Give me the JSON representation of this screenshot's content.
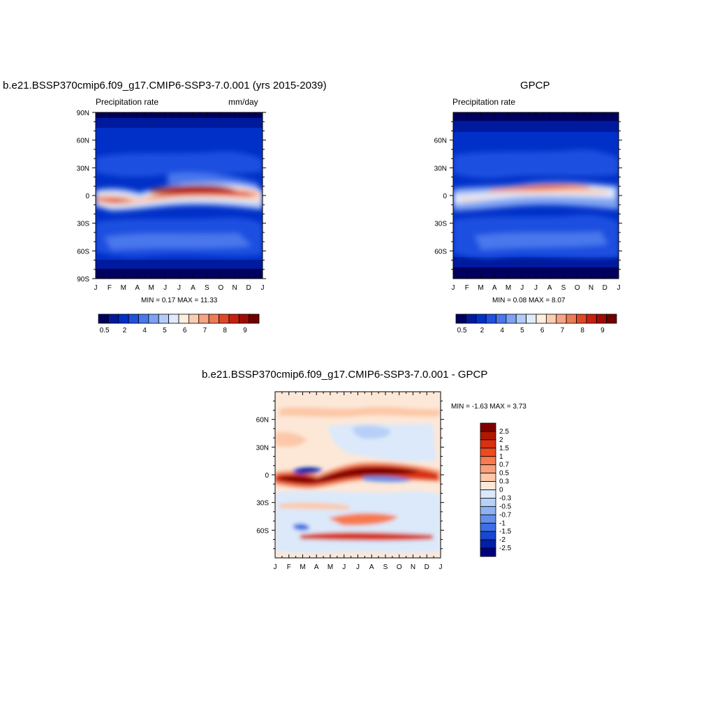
{
  "panels": [
    {
      "id": "model",
      "title": "b.e21.BSSP370cmip6.f09_g17.CMIP6-SSP3-7.0.001 (yrs 2015-2039)",
      "left_label": "Precipitation rate",
      "right_label": "mm/day",
      "minmax": "MIN =   0.17 MAX =  11.33"
    },
    {
      "id": "obs",
      "title": "GPCP",
      "left_label": "Precipitation rate",
      "right_label": "",
      "minmax": "MIN =   0.08 MAX =   8.07"
    },
    {
      "id": "diff",
      "title": "b.e21.BSSP370cmip6.f09_g17.CMIP6-SSP3-7.0.001 - GPCP",
      "left_label": "",
      "right_label": "",
      "minmax": "MIN =  -1.63 MAX =   3.73"
    }
  ],
  "chart_data": [
    {
      "type": "heatmap",
      "id": "model",
      "title": "b.e21.BSSP370cmip6.f09_g17.CMIP6-SSP3-7.0.001 (yrs 2015-2039)",
      "subtitle_left": "Precipitation rate",
      "units": "mm/day",
      "x_ticks": [
        "J",
        "F",
        "M",
        "A",
        "M",
        "J",
        "J",
        "A",
        "S",
        "O",
        "N",
        "D",
        "J"
      ],
      "y_ticks": [
        "90N",
        "60N",
        "30N",
        "0",
        "30S",
        "60S",
        "90S"
      ],
      "ylim": [
        -90,
        90
      ],
      "colorbar_labels": [
        "0.5",
        "2",
        "4",
        "5",
        "6",
        "7",
        "8",
        "9"
      ],
      "colorbar_colors": [
        "#00005f",
        "#001a9e",
        "#0030c8",
        "#1f50e0",
        "#4a78ec",
        "#7ea2f2",
        "#b3cbf8",
        "#dfeafd",
        "#fdeee0",
        "#fbcdb0",
        "#f7a384",
        "#f07a55",
        "#e0472a",
        "#c8200f",
        "#a00c05",
        "#6e0000"
      ],
      "min": 0.17,
      "max": 11.33
    },
    {
      "type": "heatmap",
      "id": "obs",
      "title": "GPCP",
      "subtitle_left": "Precipitation rate",
      "x_ticks": [
        "J",
        "F",
        "M",
        "A",
        "M",
        "J",
        "J",
        "A",
        "S",
        "O",
        "N",
        "D",
        "J"
      ],
      "y_ticks": [
        "60N",
        "30N",
        "0",
        "30S",
        "60S"
      ],
      "ylim": [
        -90,
        90
      ],
      "colorbar_labels": [
        "0.5",
        "2",
        "4",
        "5",
        "6",
        "7",
        "8",
        "9"
      ],
      "colorbar_colors": [
        "#00005f",
        "#001a9e",
        "#0030c8",
        "#1f50e0",
        "#4a78ec",
        "#7ea2f2",
        "#b3cbf8",
        "#dfeafd",
        "#fdeee0",
        "#fbcdb0",
        "#f7a384",
        "#f07a55",
        "#e0472a",
        "#c8200f",
        "#a00c05",
        "#6e0000"
      ],
      "min": 0.08,
      "max": 8.07
    },
    {
      "type": "heatmap",
      "id": "diff",
      "title": "b.e21.BSSP370cmip6.f09_g17.CMIP6-SSP3-7.0.001 - GPCP",
      "x_ticks": [
        "J",
        "F",
        "M",
        "A",
        "M",
        "J",
        "J",
        "A",
        "S",
        "O",
        "N",
        "D",
        "J"
      ],
      "y_ticks": [
        "60N",
        "30N",
        "0",
        "30S",
        "60S"
      ],
      "ylim": [
        -90,
        90
      ],
      "colorbar_labels": [
        "2.5",
        "2",
        "1.5",
        "1",
        "0.7",
        "0.5",
        "0.3",
        "0",
        "-0.3",
        "-0.5",
        "-0.7",
        "-1",
        "-1.5",
        "-2",
        "-2.5"
      ],
      "colorbar_colors": [
        "#800000",
        "#b01800",
        "#d83010",
        "#f04a20",
        "#f77a50",
        "#f9a07a",
        "#fcc8a8",
        "#fde8d8",
        "#dbe9fa",
        "#b7d0f7",
        "#8eb2f2",
        "#6490ec",
        "#3c6ee4",
        "#1848d2",
        "#0020a8",
        "#000080"
      ],
      "min": -1.63,
      "max": 3.73
    }
  ]
}
